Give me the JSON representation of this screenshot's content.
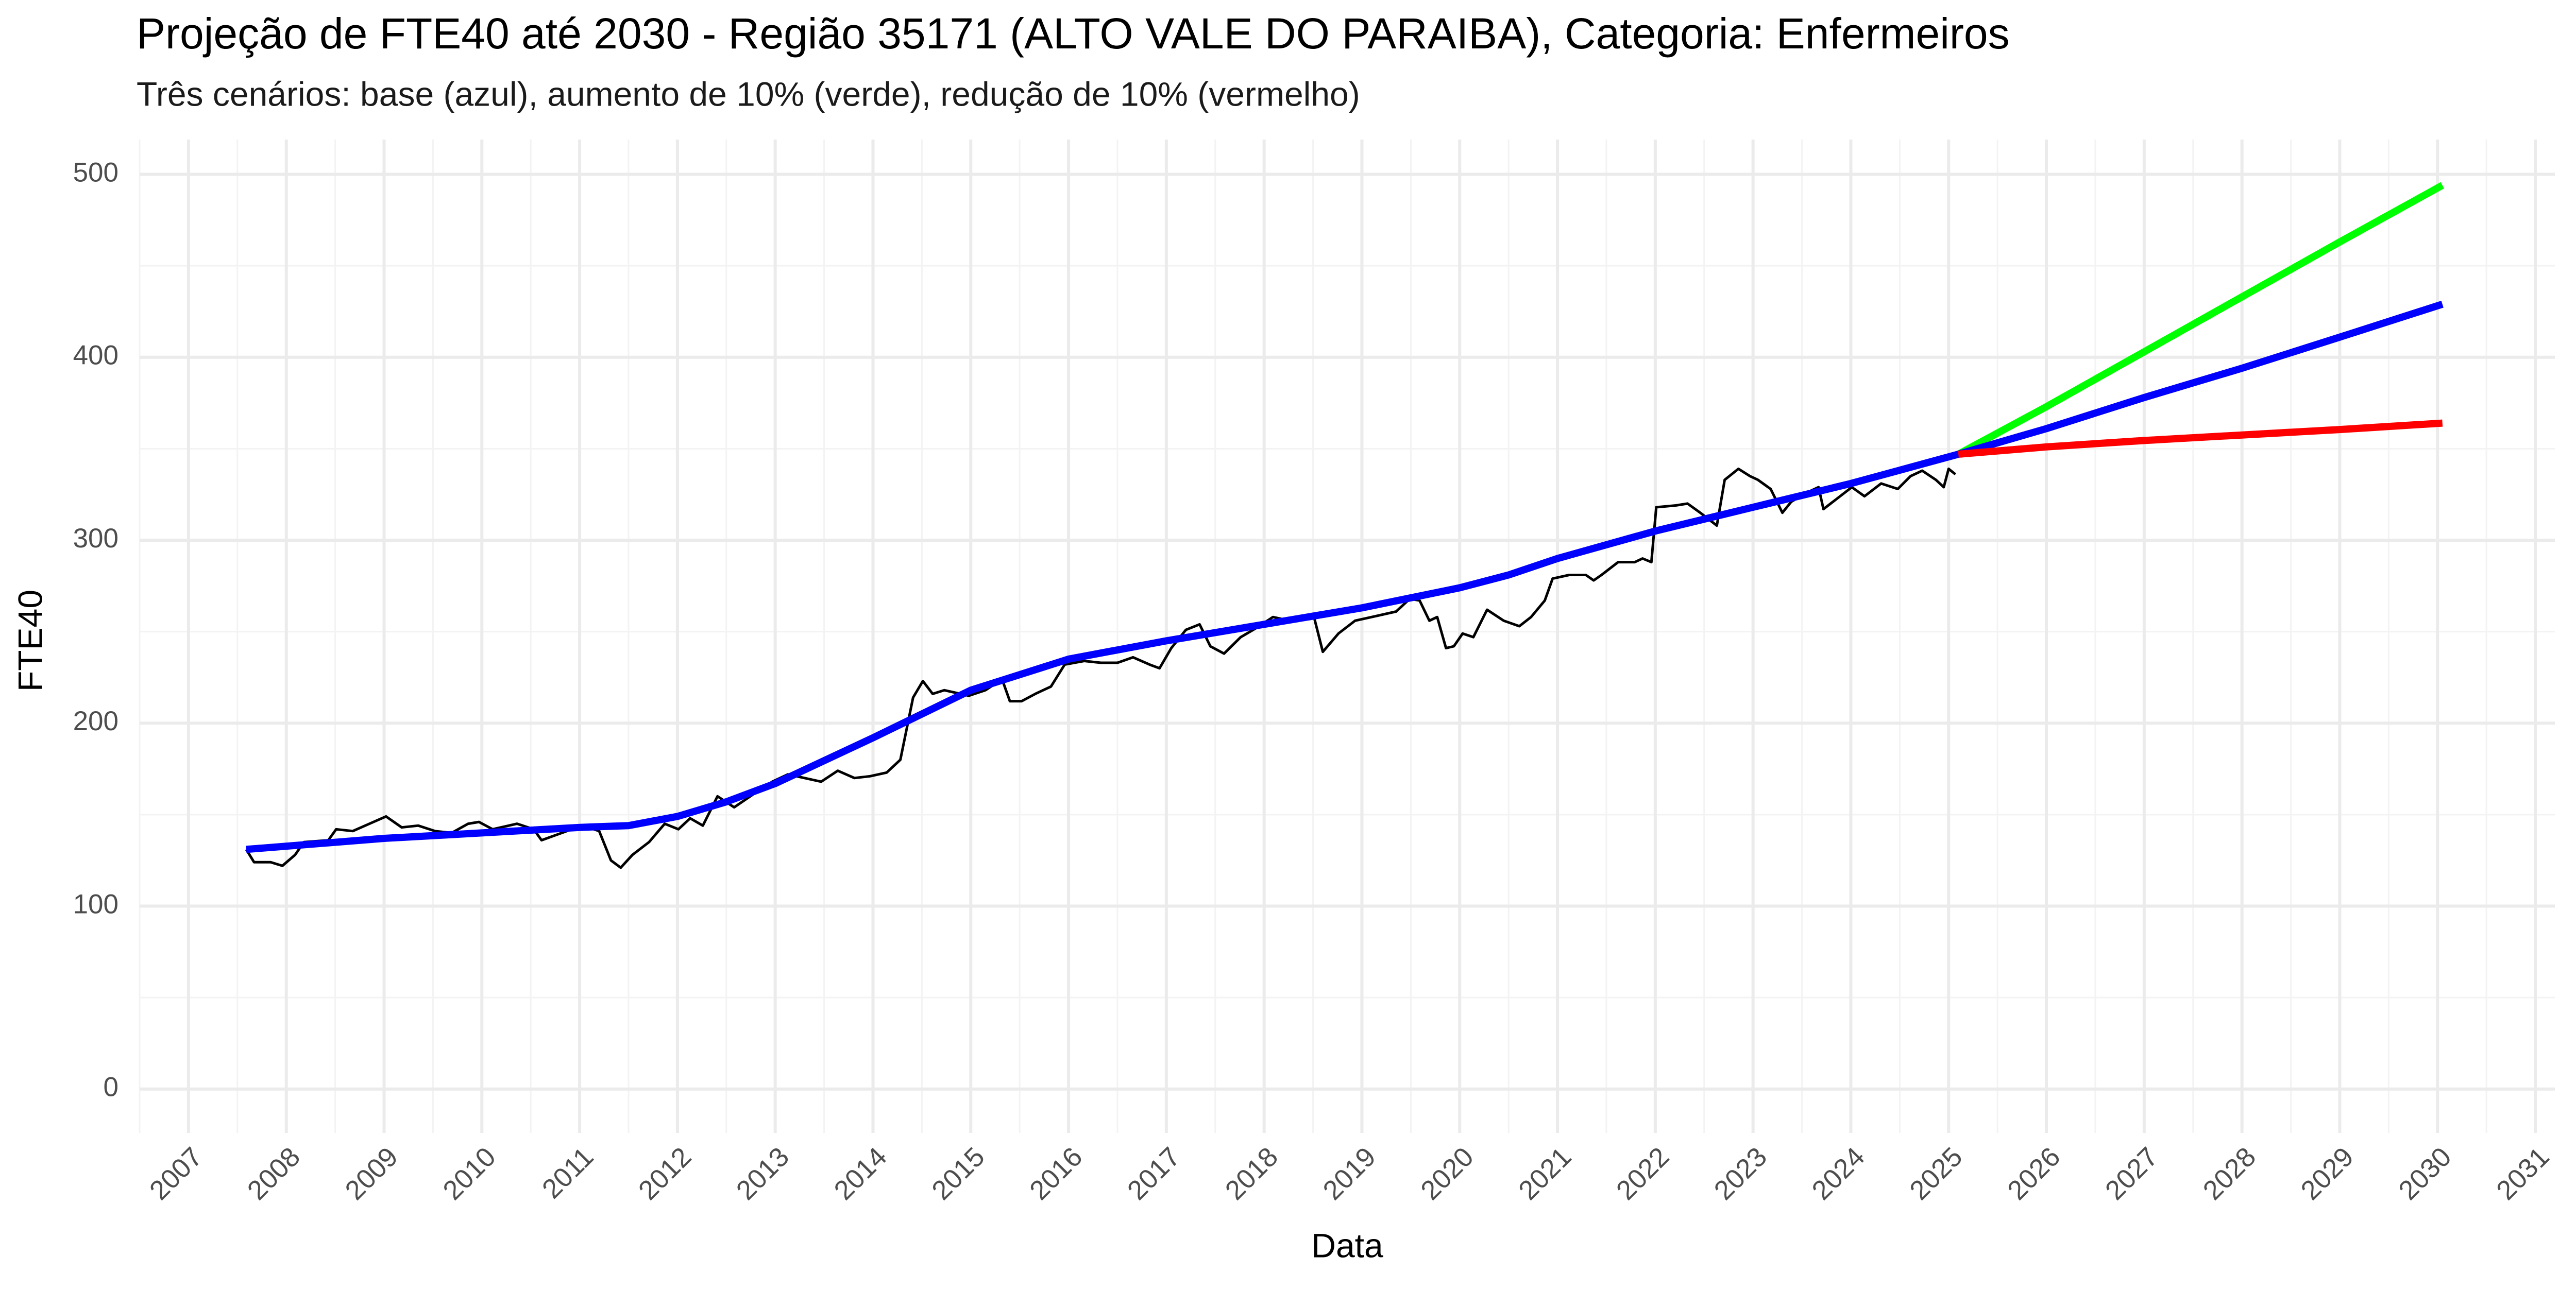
{
  "chart_data": {
    "type": "line",
    "title": "Projeção de FTE40 até 2030 - Região 35171 (ALTO VALE DO PARAIBA), Categoria: Enfermeiros",
    "subtitle": "Três cenários: base (azul), aumento de 10% (verde), redução de 10% (vermelho)",
    "x_label": "Data",
    "y_label": "FTE40",
    "xlim": [
      2006.5,
      2031.2
    ],
    "ylim": [
      -24,
      519
    ],
    "xticks": [
      2007,
      2008,
      2009,
      2010,
      2011,
      2012,
      2013,
      2014,
      2015,
      2016,
      2017,
      2018,
      2019,
      2020,
      2021,
      2022,
      2023,
      2024,
      2025,
      2026,
      2027,
      2028,
      2029,
      2030,
      2031
    ],
    "yticks": [
      0,
      100,
      200,
      300,
      400,
      500
    ],
    "xminor": [
      2006.5,
      2007.5,
      2008.5,
      2009.5,
      2010.5,
      2011.5,
      2012.5,
      2013.5,
      2014.5,
      2015.5,
      2016.5,
      2017.5,
      2018.5,
      2019.5,
      2020.5,
      2021.5,
      2022.5,
      2023.5,
      2024.5,
      2025.5,
      2026.5,
      2027.5,
      2028.5,
      2029.5,
      2030.5
    ],
    "yminor": [
      50,
      150,
      250,
      350,
      450
    ],
    "grid": true,
    "series": [
      {
        "color": "#000000",
        "x": [
          2007.59,
          2007.67,
          2007.84,
          2007.96,
          2008.09,
          2008.18,
          2008.43,
          2008.51,
          2008.68,
          2008.85,
          2009.02,
          2009.18,
          2009.35,
          2009.52,
          2009.69,
          2009.86,
          2009.97,
          2010.11,
          2010.36,
          2010.53,
          2010.61,
          2010.87,
          2011.03,
          2011.2,
          2011.32,
          2011.42,
          2011.54,
          2011.71,
          2011.87,
          2012.01,
          2012.13,
          2012.26,
          2012.41,
          2012.58,
          2012.8,
          2012.97,
          2013.13,
          2013.3,
          2013.47,
          2013.64,
          2013.81,
          2013.97,
          2014.14,
          2014.28,
          2014.41,
          2014.51,
          2014.61,
          2014.73,
          2014.98,
          2015.15,
          2015.32,
          2015.4,
          2015.52,
          2015.66,
          2015.82,
          2015.96,
          2016.16,
          2016.33,
          2016.5,
          2016.66,
          2016.83,
          2016.93,
          2017.05,
          2017.2,
          2017.34,
          2017.45,
          2017.59,
          2017.76,
          2017.92,
          2018.09,
          2018.26,
          2018.51,
          2018.6,
          2018.76,
          2018.93,
          2019.1,
          2019.35,
          2019.49,
          2019.59,
          2019.69,
          2019.77,
          2019.86,
          2019.94,
          2020.03,
          2020.14,
          2020.28,
          2020.45,
          2020.61,
          2020.73,
          2020.87,
          2020.95,
          2021.12,
          2021.29,
          2021.37,
          2021.45,
          2021.62,
          2021.79,
          2021.87,
          2021.96,
          2022.01,
          2022.21,
          2022.33,
          2022.46,
          2022.63,
          2022.71,
          2022.85,
          2022.97,
          2023.05,
          2023.18,
          2023.3,
          2023.39,
          2023.55,
          2023.67,
          2023.72,
          2023.89,
          2024.01,
          2024.14,
          2024.31,
          2024.48,
          2024.61,
          2024.73,
          2024.87,
          2024.95,
          2025.0,
          2025.07
        ],
        "values": [
          131,
          124,
          124,
          122,
          128,
          135,
          136,
          142,
          141,
          145,
          149,
          143,
          144,
          141,
          140,
          145,
          146,
          142,
          145,
          142,
          136,
          141,
          144,
          141,
          125,
          121,
          128,
          135,
          145,
          142,
          148,
          144,
          160,
          154,
          162,
          168,
          172,
          170,
          168,
          174,
          170,
          171,
          173,
          180,
          214,
          223,
          216,
          218,
          215,
          218,
          224,
          212,
          212,
          216,
          220,
          232,
          234,
          233,
          233,
          236,
          232,
          230,
          241,
          251,
          254,
          242,
          238,
          247,
          252,
          258,
          256,
          258,
          239,
          249,
          256,
          258,
          261,
          268,
          267,
          256,
          258,
          241,
          242,
          249,
          247,
          262,
          256,
          253,
          258,
          267,
          279,
          281,
          281,
          278,
          281,
          288,
          288,
          290,
          288,
          318,
          319,
          320,
          315,
          308,
          333,
          339,
          335,
          333,
          328,
          315,
          321,
          326,
          329,
          317,
          324,
          329,
          324,
          331,
          328,
          335,
          338,
          333,
          329,
          339,
          336
        ]
      },
      {
        "color": "#00ff00",
        "x": [
          2025.1,
          2026,
          2027,
          2028,
          2029,
          2030.05
        ],
        "values": [
          347,
          373,
          403,
          433,
          463,
          494
        ]
      },
      {
        "color": "#0000ff",
        "x": [
          2007.59,
          2009,
          2010,
          2011,
          2011.5,
          2012,
          2012.5,
          2013,
          2014,
          2015,
          2016,
          2016.5,
          2017,
          2018,
          2019,
          2020,
          2020.5,
          2021,
          2022,
          2023,
          2024,
          2025.1,
          2026,
          2027,
          2028,
          2029,
          2030.05
        ],
        "values": [
          131,
          137,
          140,
          143,
          144,
          149,
          157,
          167,
          192,
          218,
          235,
          240,
          245,
          254,
          263,
          274,
          281,
          290,
          305,
          318,
          331,
          347,
          361,
          378,
          394,
          411,
          429
        ]
      },
      {
        "color": "#ff0000",
        "x": [
          2025.1,
          2026,
          2027,
          2028,
          2029,
          2030.05
        ],
        "values": [
          347,
          351,
          354.5,
          357.5,
          360.5,
          364
        ]
      }
    ]
  }
}
